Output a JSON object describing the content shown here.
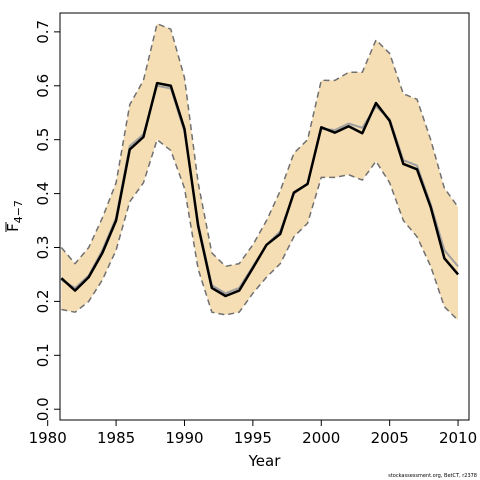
{
  "chart_data": {
    "type": "line",
    "xlabel": "Year",
    "ylabel": "F",
    "ylabel_subscript": "4−7",
    "xlim": [
      1980.9,
      2010.8
    ],
    "ylim": [
      -0.02,
      0.735
    ],
    "xticks": [
      1980,
      1985,
      1990,
      1995,
      2000,
      2005,
      2010
    ],
    "yticks": [
      0.0,
      0.1,
      0.2,
      0.3,
      0.4,
      0.5,
      0.6,
      0.7
    ],
    "ytick_labels": [
      "0.0",
      "0.1",
      "0.2",
      "0.3",
      "0.4",
      "0.5",
      "0.6",
      "0.7"
    ],
    "grid": false,
    "credit": "stockassessment.org, BetCT, r2378",
    "colors": {
      "band": "#f5deb3",
      "bound_line": "#707070",
      "estimate_line": "#000000",
      "alt_line": "#a0a0a0"
    },
    "x": [
      1981,
      1982,
      1983,
      1984,
      1985,
      1986,
      1987,
      1988,
      1989,
      1990,
      1991,
      1992,
      1993,
      1994,
      1995,
      1996,
      1997,
      1998,
      1999,
      2000,
      2001,
      2002,
      2003,
      2004,
      2005,
      2006,
      2007,
      2008,
      2009,
      2010
    ],
    "series": [
      {
        "role": "lower_band",
        "values": [
          0.185,
          0.18,
          0.2,
          0.24,
          0.295,
          0.385,
          0.42,
          0.5,
          0.48,
          0.41,
          0.26,
          0.18,
          0.175,
          0.18,
          0.215,
          0.245,
          0.27,
          0.32,
          0.345,
          0.43,
          0.43,
          0.435,
          0.425,
          0.46,
          0.42,
          0.35,
          0.32,
          0.265,
          0.19,
          0.165
        ]
      },
      {
        "role": "upper_band",
        "values": [
          0.3,
          0.27,
          0.3,
          0.355,
          0.42,
          0.565,
          0.61,
          0.715,
          0.705,
          0.615,
          0.42,
          0.29,
          0.265,
          0.27,
          0.305,
          0.35,
          0.405,
          0.475,
          0.5,
          0.61,
          0.61,
          0.625,
          0.625,
          0.685,
          0.66,
          0.585,
          0.575,
          0.5,
          0.41,
          0.375
        ]
      },
      {
        "role": "alt_estimate",
        "values": [
          0.24,
          0.225,
          0.248,
          0.295,
          0.355,
          0.488,
          0.51,
          0.6,
          0.595,
          0.515,
          0.345,
          0.23,
          0.215,
          0.225,
          0.265,
          0.305,
          0.33,
          0.4,
          0.418,
          0.52,
          0.518,
          0.53,
          0.522,
          0.562,
          0.538,
          0.462,
          0.452,
          0.38,
          0.295,
          0.265
        ]
      },
      {
        "role": "estimate",
        "values": [
          0.243,
          0.22,
          0.245,
          0.29,
          0.35,
          0.482,
          0.505,
          0.605,
          0.6,
          0.52,
          0.34,
          0.225,
          0.21,
          0.22,
          0.262,
          0.305,
          0.325,
          0.402,
          0.418,
          0.523,
          0.513,
          0.525,
          0.512,
          0.568,
          0.535,
          0.455,
          0.445,
          0.375,
          0.28,
          0.25
        ]
      }
    ]
  }
}
